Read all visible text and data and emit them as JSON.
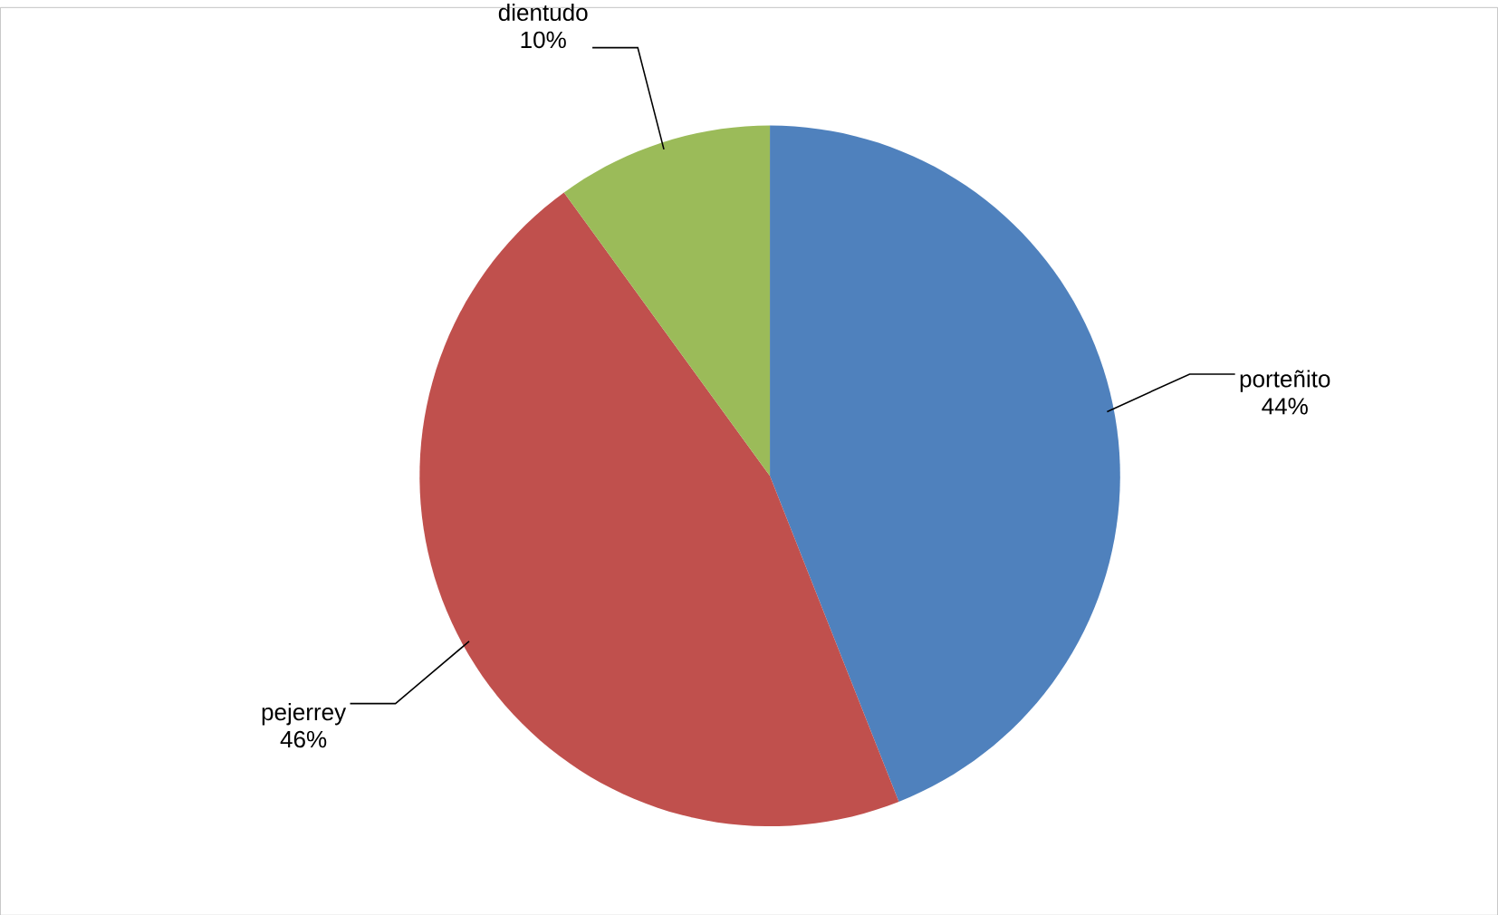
{
  "chart_data": {
    "type": "pie",
    "categories": [
      "porteñito",
      "pejerrey",
      "dientudo"
    ],
    "values": [
      44,
      46,
      10
    ],
    "value_labels": [
      "44%",
      "46%",
      "10%"
    ],
    "colors": [
      "#4f81bd",
      "#c0504d",
      "#9bbb59"
    ]
  }
}
